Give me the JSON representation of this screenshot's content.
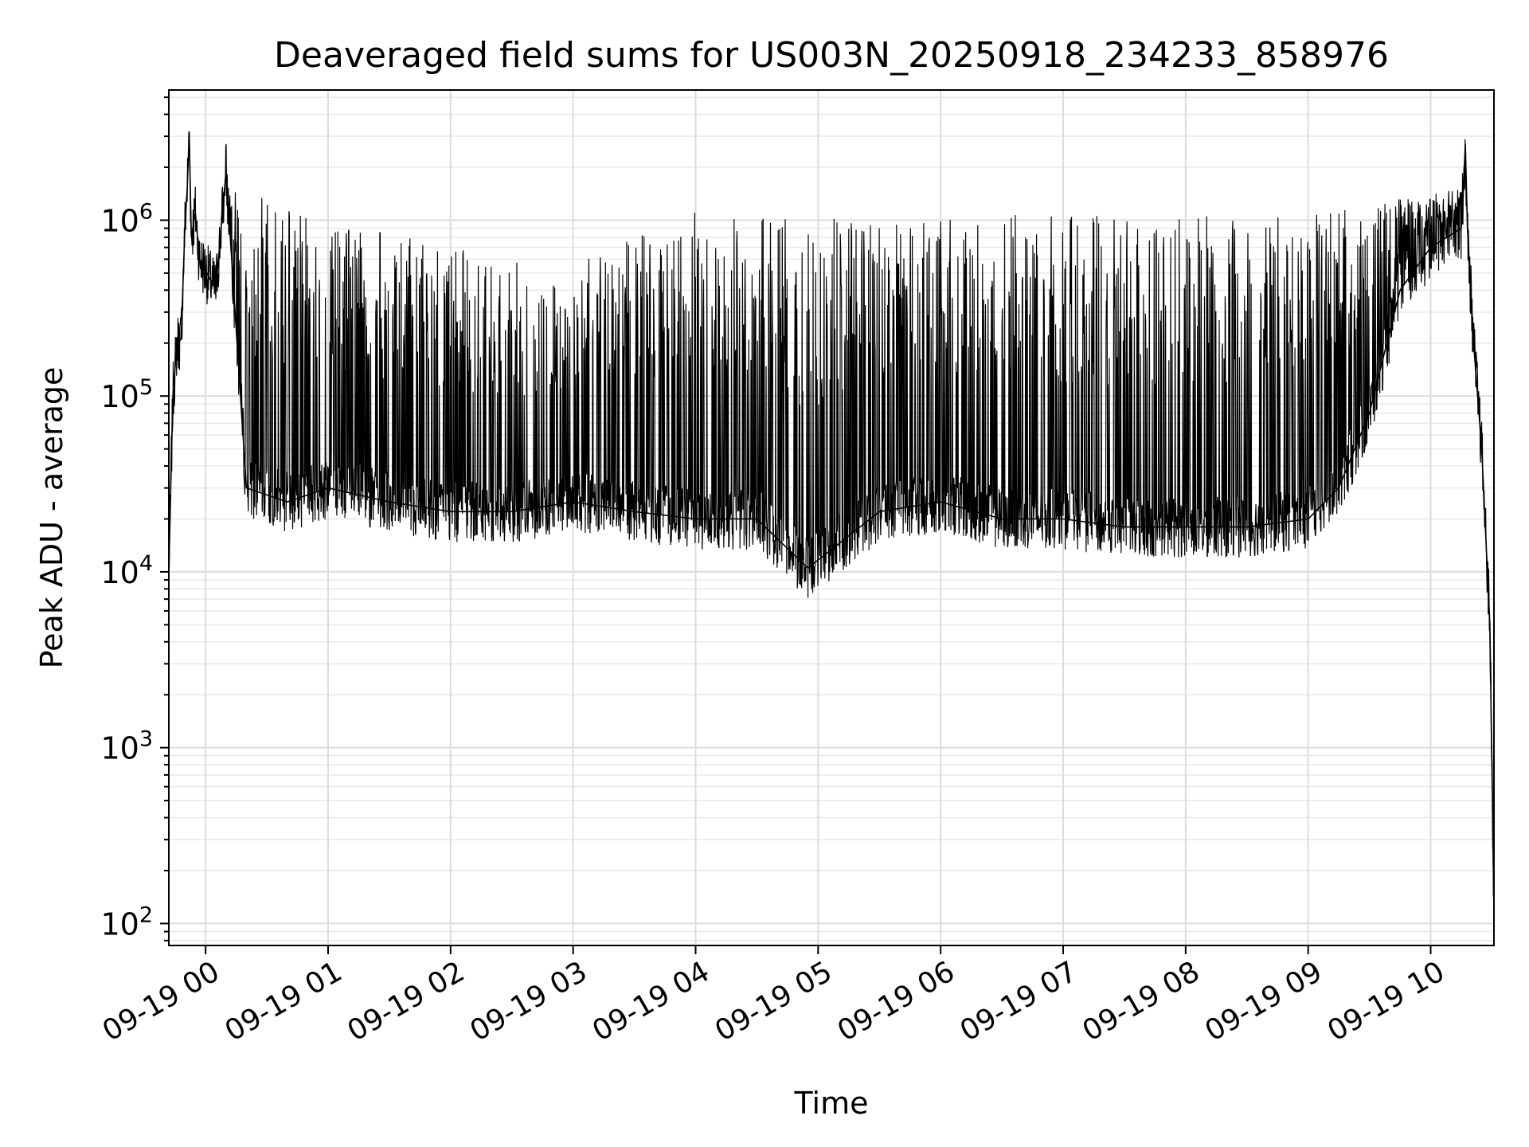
{
  "chart_data": {
    "type": "line",
    "title": "Deaveraged field sums for US003N_20250918_234233_858976",
    "xlabel": "Time",
    "ylabel": "Peak ADU - average",
    "yscale": "log",
    "ylim": [
      75,
      5500000
    ],
    "xlim": [
      "09-18 23:42",
      "09-19 10:31"
    ],
    "grid": true,
    "line_color": "#000000",
    "x_tick_labels": [
      "09-19 00",
      "09-19 01",
      "09-19 02",
      "09-19 03",
      "09-19 04",
      "09-19 05",
      "09-19 06",
      "09-19 07",
      "09-19 08",
      "09-19 09",
      "09-19 10"
    ],
    "y_tick_values": [
      100,
      1000,
      10000,
      100000,
      1000000
    ],
    "y_tick_bases": [
      "10",
      "10",
      "10",
      "10",
      "10"
    ],
    "y_tick_exponents": [
      "2",
      "3",
      "4",
      "5",
      "6"
    ],
    "series": [
      {
        "values": [
          [
            "09-18 23:42",
            10000
          ],
          [
            "09-18 23:44",
            100000
          ],
          [
            "09-18 23:46",
            200000
          ],
          [
            "09-18 23:48",
            210000
          ],
          [
            "09-18 23:50",
            1000000
          ],
          [
            "09-18 23:51",
            1500000
          ],
          [
            "09-18 23:52",
            3200000
          ],
          [
            "09-18 23:53",
            800000
          ],
          [
            "09-18 23:55",
            1100000
          ],
          [
            "09-18 23:57",
            600000
          ],
          [
            "09-19 00:05",
            400000
          ],
          [
            "09-19 00:10",
            1900000
          ],
          [
            "09-19 00:20",
            30000
          ],
          [
            "09-19 00:40",
            25000
          ],
          [
            "09-19 01:00",
            30000
          ],
          [
            "09-19 01:30",
            25000
          ],
          [
            "09-19 02:00",
            22000
          ],
          [
            "09-19 02:30",
            22000
          ],
          [
            "09-19 03:00",
            25000
          ],
          [
            "09-19 03:30",
            22000
          ],
          [
            "09-19 04:00",
            20000
          ],
          [
            "09-19 04:30",
            20000
          ],
          [
            "09-19 04:55",
            10500
          ],
          [
            "09-19 05:30",
            22000
          ],
          [
            "09-19 06:00",
            25000
          ],
          [
            "09-19 06:30",
            20000
          ],
          [
            "09-19 07:00",
            20000
          ],
          [
            "09-19 07:30",
            18000
          ],
          [
            "09-19 08:00",
            18000
          ],
          [
            "09-19 08:30",
            18000
          ],
          [
            "09-19 09:00",
            20000
          ],
          [
            "09-19 09:15",
            30000
          ],
          [
            "09-19 09:30",
            80000
          ],
          [
            "09-19 09:45",
            400000
          ],
          [
            "09-19 10:00",
            700000
          ],
          [
            "09-19 10:15",
            900000
          ],
          [
            "09-19 10:17",
            2700000
          ],
          [
            "09-19 10:18",
            900000
          ],
          [
            "09-19 10:21",
            200000
          ],
          [
            "09-19 10:25",
            50000
          ],
          [
            "09-19 10:29",
            5000
          ],
          [
            "09-19 10:31",
            120
          ]
        ]
      }
    ]
  }
}
